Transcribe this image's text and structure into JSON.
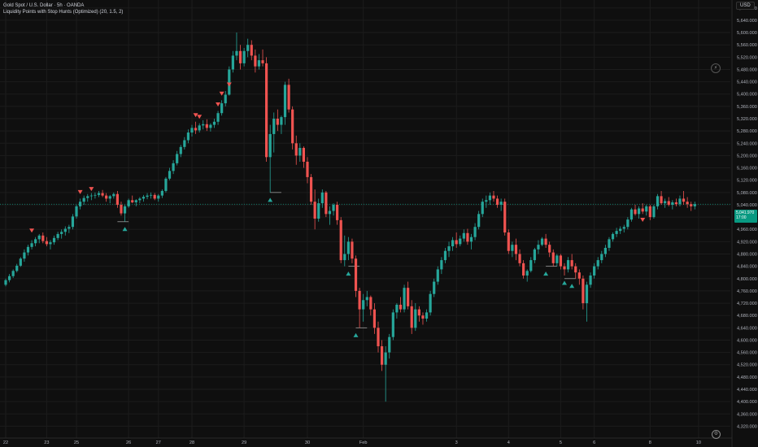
{
  "window": {
    "symbol_title": "Gold Spot / U.S. Dollar · 5h · OANDA",
    "indicator_title": "Liquidity Points with Stop Hunts (Optimized) (20, 1.5, 2)",
    "currency": "USD"
  },
  "current_price": {
    "price_label": "5,041.970",
    "countdown": "17:00",
    "value": 5042
  },
  "icons": {
    "settings": "gear-icon",
    "scroll_to_realtime": "lightning-icon"
  },
  "colors": {
    "bg": "#0f0f0f",
    "up": "#26a69a",
    "down": "#ef5350",
    "grid": "#1c1c1c",
    "axis_text": "#b2b5be",
    "price_line": "#089981"
  },
  "chart_data": {
    "type": "candlestick",
    "symbol": "Gold Spot / U.S. Dollar",
    "interval": "5h",
    "source": "OANDA",
    "ylim": [
      4300,
      5690
    ],
    "y_ticks": [
      "5,680.000",
      "5,640.000",
      "5,600.000",
      "5,560.000",
      "5,520.000",
      "5,480.000",
      "5,440.000",
      "5,400.000",
      "5,360.000",
      "5,320.000",
      "5,280.000",
      "5,240.000",
      "5,200.000",
      "5,160.000",
      "5,120.000",
      "5,080.000",
      "5,040.000",
      "5,000.000",
      "4,960.000",
      "4,920.000",
      "4,880.000",
      "4,840.000",
      "4,800.000",
      "4,760.000",
      "4,720.000",
      "4,680.000",
      "4,640.000",
      "4,600.000",
      "4,560.000",
      "4,520.000",
      "4,480.000",
      "4,440.000",
      "4,400.000",
      "4,360.000",
      "4,320.000"
    ],
    "x_ticks": [
      {
        "label": "22",
        "bar": 0
      },
      {
        "label": "23",
        "bar": 11
      },
      {
        "label": "25",
        "bar": 19
      },
      {
        "label": "26",
        "bar": 33
      },
      {
        "label": "27",
        "bar": 41
      },
      {
        "label": "28",
        "bar": 50
      },
      {
        "label": "29",
        "bar": 64
      },
      {
        "label": "30",
        "bar": 81
      },
      {
        "label": "Feb",
        "bar": 96
      },
      {
        "label": "3",
        "bar": 121
      },
      {
        "label": "4",
        "bar": 135
      },
      {
        "label": "5",
        "bar": 149
      },
      {
        "label": "6",
        "bar": 158
      },
      {
        "label": "8",
        "bar": 173
      },
      {
        "label": "10",
        "bar": 186
      }
    ],
    "candles": [
      [
        4780,
        4800,
        4775,
        4795
      ],
      [
        4795,
        4815,
        4788,
        4808
      ],
      [
        4808,
        4830,
        4802,
        4825
      ],
      [
        4825,
        4848,
        4820,
        4842
      ],
      [
        4842,
        4870,
        4838,
        4865
      ],
      [
        4865,
        4895,
        4855,
        4885
      ],
      [
        4885,
        4910,
        4875,
        4903
      ],
      [
        4903,
        4925,
        4895,
        4915
      ],
      [
        4915,
        4935,
        4905,
        4928
      ],
      [
        4928,
        4945,
        4915,
        4940
      ],
      [
        4940,
        4950,
        4915,
        4922
      ],
      [
        4922,
        4935,
        4905,
        4912
      ],
      [
        4912,
        4925,
        4895,
        4918
      ],
      [
        4918,
        4940,
        4910,
        4932
      ],
      [
        4932,
        4952,
        4925,
        4945
      ],
      [
        4945,
        4960,
        4930,
        4952
      ],
      [
        4952,
        4970,
        4940,
        4962
      ],
      [
        4962,
        4975,
        4948,
        4968
      ],
      [
        4968,
        5010,
        4960,
        5002
      ],
      [
        5002,
        5040,
        4995,
        5035
      ],
      [
        5035,
        5060,
        5025,
        5050
      ],
      [
        5050,
        5070,
        5040,
        5062
      ],
      [
        5062,
        5075,
        5050,
        5068
      ],
      [
        5068,
        5078,
        5055,
        5070
      ],
      [
        5070,
        5080,
        5060,
        5072
      ],
      [
        5072,
        5085,
        5065,
        5078
      ],
      [
        5078,
        5088,
        5065,
        5070
      ],
      [
        5070,
        5078,
        5050,
        5060
      ],
      [
        5060,
        5072,
        5045,
        5068
      ],
      [
        5068,
        5080,
        5060,
        5075
      ],
      [
        5075,
        5085,
        5030,
        5040
      ],
      [
        5040,
        5050,
        5005,
        5012
      ],
      [
        5012,
        5040,
        4985,
        5035
      ],
      [
        5035,
        5060,
        5030,
        5055
      ],
      [
        5055,
        5070,
        5045,
        5048
      ],
      [
        5048,
        5058,
        5035,
        5055
      ],
      [
        5055,
        5065,
        5045,
        5060
      ],
      [
        5060,
        5072,
        5050,
        5066
      ],
      [
        5066,
        5078,
        5058,
        5070
      ],
      [
        5070,
        5080,
        5060,
        5072
      ],
      [
        5072,
        5078,
        5055,
        5060
      ],
      [
        5060,
        5075,
        5050,
        5070
      ],
      [
        5070,
        5090,
        5062,
        5085
      ],
      [
        5085,
        5130,
        5080,
        5125
      ],
      [
        5125,
        5160,
        5120,
        5150
      ],
      [
        5150,
        5185,
        5140,
        5175
      ],
      [
        5175,
        5215,
        5168,
        5205
      ],
      [
        5205,
        5235,
        5195,
        5228
      ],
      [
        5228,
        5260,
        5220,
        5250
      ],
      [
        5250,
        5285,
        5240,
        5275
      ],
      [
        5275,
        5300,
        5262,
        5290
      ],
      [
        5290,
        5310,
        5270,
        5282
      ],
      [
        5282,
        5305,
        5275,
        5298
      ],
      [
        5298,
        5315,
        5285,
        5302
      ],
      [
        5302,
        5318,
        5280,
        5290
      ],
      [
        5290,
        5305,
        5278,
        5300
      ],
      [
        5300,
        5320,
        5290,
        5310
      ],
      [
        5310,
        5345,
        5300,
        5338
      ],
      [
        5338,
        5380,
        5330,
        5370
      ],
      [
        5370,
        5410,
        5360,
        5398
      ],
      [
        5398,
        5490,
        5395,
        5480
      ],
      [
        5480,
        5540,
        5470,
        5525
      ],
      [
        5525,
        5600,
        5510,
        5540
      ],
      [
        5540,
        5560,
        5480,
        5500
      ],
      [
        5500,
        5550,
        5490,
        5540
      ],
      [
        5540,
        5580,
        5520,
        5560
      ],
      [
        5560,
        5575,
        5510,
        5525
      ],
      [
        5525,
        5545,
        5470,
        5490
      ],
      [
        5490,
        5530,
        5480,
        5510
      ],
      [
        5510,
        5545,
        5490,
        5500
      ],
      [
        5500,
        5520,
        5180,
        5195
      ],
      [
        5195,
        5300,
        5080,
        5270
      ],
      [
        5270,
        5340,
        5210,
        5320
      ],
      [
        5320,
        5350,
        5280,
        5300
      ],
      [
        5300,
        5330,
        5270,
        5325
      ],
      [
        5325,
        5440,
        5300,
        5430
      ],
      [
        5430,
        5450,
        5340,
        5350
      ],
      [
        5350,
        5360,
        5220,
        5240
      ],
      [
        5240,
        5265,
        5170,
        5200
      ],
      [
        5200,
        5240,
        5180,
        5225
      ],
      [
        5225,
        5230,
        5160,
        5180
      ],
      [
        5180,
        5195,
        5110,
        5130
      ],
      [
        5130,
        5140,
        5040,
        5050
      ],
      [
        5050,
        5090,
        4960,
        4995
      ],
      [
        4995,
        5060,
        4985,
        5045
      ],
      [
        5045,
        5090,
        5030,
        5080
      ],
      [
        5080,
        5085,
        5000,
        5010
      ],
      [
        5010,
        5035,
        4975,
        5020
      ],
      [
        5020,
        5045,
        5005,
        5040
      ],
      [
        5040,
        5050,
        4975,
        4990
      ],
      [
        4990,
        5000,
        4850,
        4860
      ],
      [
        4860,
        4940,
        4840,
        4880
      ],
      [
        4880,
        4935,
        4860,
        4920
      ],
      [
        4920,
        4930,
        4850,
        4865
      ],
      [
        4865,
        4875,
        4740,
        4760
      ],
      [
        4760,
        4770,
        4640,
        4700
      ],
      [
        4700,
        4750,
        4660,
        4730
      ],
      [
        4730,
        4760,
        4710,
        4740
      ],
      [
        4740,
        4745,
        4680,
        4700
      ],
      [
        4700,
        4720,
        4620,
        4640
      ],
      [
        4640,
        4660,
        4560,
        4580
      ],
      [
        4580,
        4600,
        4500,
        4520
      ],
      [
        4520,
        4580,
        4400,
        4560
      ],
      [
        4560,
        4620,
        4540,
        4610
      ],
      [
        4610,
        4700,
        4600,
        4690
      ],
      [
        4690,
        4720,
        4670,
        4715
      ],
      [
        4715,
        4740,
        4690,
        4700
      ],
      [
        4700,
        4780,
        4690,
        4770
      ],
      [
        4770,
        4790,
        4700,
        4710
      ],
      [
        4710,
        4730,
        4620,
        4640
      ],
      [
        4640,
        4720,
        4630,
        4700
      ],
      [
        4700,
        4710,
        4660,
        4680
      ],
      [
        4680,
        4690,
        4650,
        4670
      ],
      [
        4670,
        4700,
        4660,
        4690
      ],
      [
        4690,
        4760,
        4680,
        4750
      ],
      [
        4750,
        4800,
        4740,
        4790
      ],
      [
        4790,
        4840,
        4780,
        4830
      ],
      [
        4830,
        4870,
        4815,
        4860
      ],
      [
        4860,
        4900,
        4850,
        4890
      ],
      [
        4890,
        4920,
        4870,
        4905
      ],
      [
        4905,
        4935,
        4890,
        4925
      ],
      [
        4925,
        4950,
        4900,
        4912
      ],
      [
        4912,
        4940,
        4905,
        4930
      ],
      [
        4930,
        4960,
        4920,
        4948
      ],
      [
        4948,
        4962,
        4910,
        4920
      ],
      [
        4920,
        4945,
        4895,
        4935
      ],
      [
        4935,
        4980,
        4925,
        4968
      ],
      [
        4968,
        5020,
        4960,
        5010
      ],
      [
        5010,
        5060,
        5000,
        5050
      ],
      [
        5050,
        5070,
        5030,
        5055
      ],
      [
        5055,
        5080,
        5040,
        5070
      ],
      [
        5070,
        5085,
        5050,
        5060
      ],
      [
        5060,
        5070,
        5030,
        5040
      ],
      [
        5040,
        5060,
        5020,
        5050
      ],
      [
        5050,
        5060,
        4940,
        4950
      ],
      [
        4950,
        4960,
        4880,
        4890
      ],
      [
        4890,
        4920,
        4870,
        4910
      ],
      [
        4910,
        4930,
        4860,
        4880
      ],
      [
        4880,
        4895,
        4840,
        4850
      ],
      [
        4850,
        4860,
        4800,
        4810
      ],
      [
        4810,
        4830,
        4790,
        4825
      ],
      [
        4825,
        4870,
        4820,
        4860
      ],
      [
        4860,
        4900,
        4850,
        4895
      ],
      [
        4895,
        4925,
        4880,
        4910
      ],
      [
        4910,
        4935,
        4905,
        4930
      ],
      [
        4930,
        4945,
        4900,
        4910
      ],
      [
        4910,
        4920,
        4870,
        4885
      ],
      [
        4885,
        4895,
        4840,
        4850
      ],
      [
        4850,
        4880,
        4840,
        4875
      ],
      [
        4875,
        4880,
        4830,
        4840
      ],
      [
        4840,
        4850,
        4810,
        4830
      ],
      [
        4830,
        4870,
        4820,
        4860
      ],
      [
        4860,
        4880,
        4830,
        4840
      ],
      [
        4840,
        4850,
        4800,
        4820
      ],
      [
        4820,
        4830,
        4780,
        4800
      ],
      [
        4800,
        4810,
        4700,
        4720
      ],
      [
        4720,
        4790,
        4660,
        4780
      ],
      [
        4780,
        4820,
        4770,
        4810
      ],
      [
        4810,
        4850,
        4800,
        4840
      ],
      [
        4840,
        4870,
        4830,
        4860
      ],
      [
        4860,
        4890,
        4850,
        4880
      ],
      [
        4880,
        4910,
        4870,
        4900
      ],
      [
        4900,
        4935,
        4890,
        4928
      ],
      [
        4928,
        4950,
        4920,
        4945
      ],
      [
        4945,
        4965,
        4935,
        4955
      ],
      [
        4955,
        4970,
        4945,
        4962
      ],
      [
        4962,
        4975,
        4950,
        4968
      ],
      [
        4968,
        5000,
        4960,
        4992
      ],
      [
        4992,
        5030,
        4985,
        5025
      ],
      [
        5025,
        5040,
        5005,
        5010
      ],
      [
        5010,
        5035,
        4995,
        5028
      ],
      [
        5028,
        5045,
        5010,
        5018
      ],
      [
        5018,
        5040,
        5005,
        5035
      ],
      [
        5035,
        5040,
        4990,
        5000
      ],
      [
        5000,
        5040,
        4995,
        5035
      ],
      [
        5035,
        5075,
        5025,
        5068
      ],
      [
        5068,
        5085,
        5040,
        5045
      ],
      [
        5045,
        5060,
        5030,
        5052
      ],
      [
        5052,
        5065,
        5035,
        5040
      ],
      [
        5040,
        5055,
        5025,
        5048
      ],
      [
        5048,
        5060,
        5035,
        5042
      ],
      [
        5042,
        5070,
        5035,
        5060
      ],
      [
        5060,
        5085,
        5040,
        5050
      ],
      [
        5050,
        5065,
        5030,
        5042
      ],
      [
        5042,
        5050,
        5020,
        5035
      ],
      [
        5035,
        5050,
        5025,
        5042
      ]
    ],
    "markers": [
      {
        "type": "stop-hunt-high",
        "bar": 7,
        "price": 4935
      },
      {
        "type": "stop-hunt-high",
        "bar": 20,
        "price": 5060
      },
      {
        "type": "stop-hunt-high",
        "bar": 23,
        "price": 5070
      },
      {
        "type": "stop-hunt-low",
        "bar": 32,
        "price": 4985
      },
      {
        "type": "stop-hunt-high",
        "bar": 51,
        "price": 5310
      },
      {
        "type": "stop-hunt-high",
        "bar": 52,
        "price": 5305
      },
      {
        "type": "stop-hunt-high",
        "bar": 57,
        "price": 5345
      },
      {
        "type": "stop-hunt-high",
        "bar": 58,
        "price": 5380
      },
      {
        "type": "stop-hunt-high",
        "bar": 60,
        "price": 5410
      },
      {
        "type": "stop-hunt-low",
        "bar": 71,
        "price": 5080
      },
      {
        "type": "stop-hunt-low",
        "bar": 92,
        "price": 4840
      },
      {
        "type": "stop-hunt-low",
        "bar": 94,
        "price": 4640
      },
      {
        "type": "stop-hunt-low",
        "bar": 145,
        "price": 4840
      },
      {
        "type": "stop-hunt-low",
        "bar": 150,
        "price": 4810
      },
      {
        "type": "stop-hunt-low",
        "bar": 152,
        "price": 4800
      },
      {
        "type": "stop-hunt-high",
        "bar": 171,
        "price": 4970
      }
    ],
    "liquidity_lines": [
      {
        "from_bar": 30,
        "to_bar": 33,
        "price": 4985
      },
      {
        "from_bar": 71,
        "to_bar": 74,
        "price": 5080
      },
      {
        "from_bar": 92,
        "to_bar": 95,
        "price": 4840
      },
      {
        "from_bar": 94,
        "to_bar": 97,
        "price": 4640
      },
      {
        "from_bar": 145,
        "to_bar": 148,
        "price": 4840
      },
      {
        "from_bar": 150,
        "to_bar": 153,
        "price": 4800
      }
    ]
  }
}
